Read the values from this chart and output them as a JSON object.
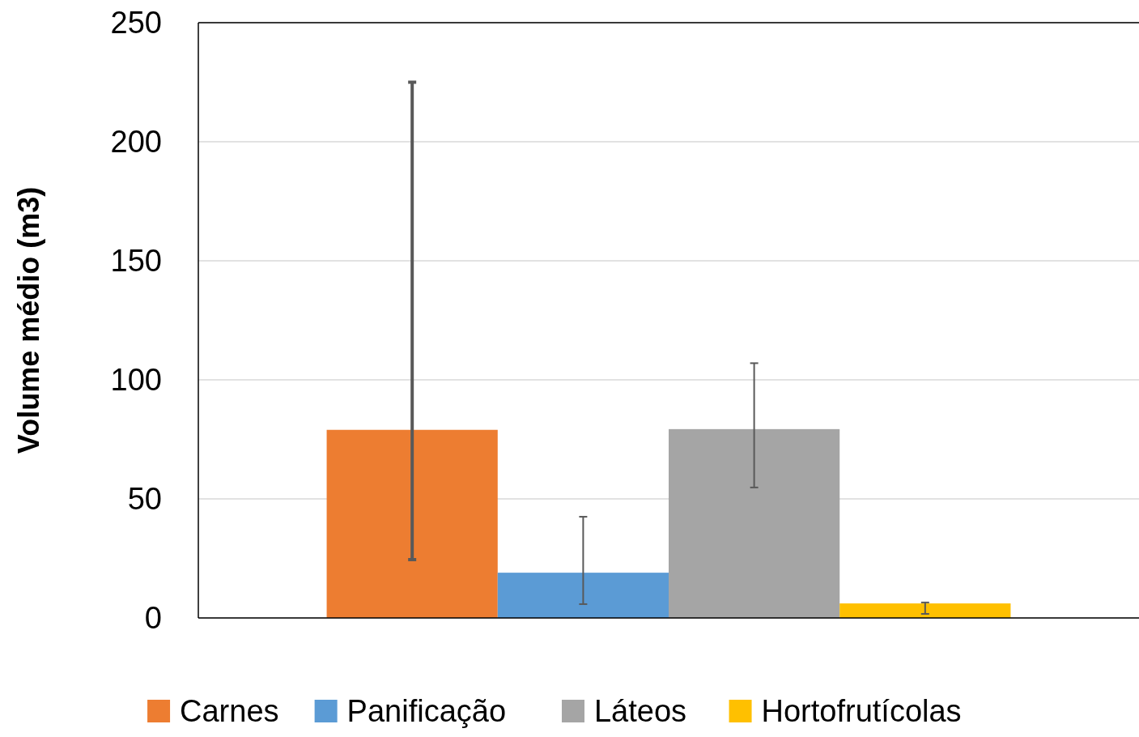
{
  "chart_data": {
    "type": "bar",
    "ylabel": "Volume médio (m3)",
    "categories": [
      null
    ],
    "series": [
      {
        "name": "Carnes",
        "color": "#ed7d31",
        "values": [
          79
        ],
        "errors": [
          [
            24.5,
            225
          ]
        ]
      },
      {
        "name": "Panificação",
        "color": "#5b9bd5",
        "values": [
          19
        ],
        "errors": [
          [
            5.8,
            42.5
          ]
        ]
      },
      {
        "name": "Láteos",
        "color": "#a5a5a5",
        "values": [
          79.3
        ],
        "errors": [
          [
            54.8,
            107
          ]
        ]
      },
      {
        "name": "Hortofrutícolas",
        "color": "#ffc000",
        "values": [
          6.1
        ],
        "errors": [
          [
            1.7,
            6.5
          ]
        ]
      }
    ],
    "ylim": [
      0,
      250
    ],
    "yticks": [
      0,
      50,
      100,
      150,
      200,
      250
    ],
    "grid": "y",
    "legend": "bottom"
  }
}
